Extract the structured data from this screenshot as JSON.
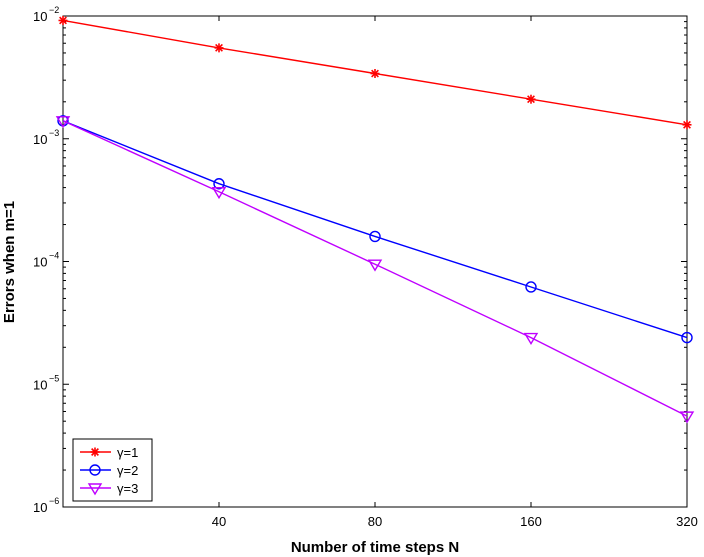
{
  "chart_data": {
    "type": "line",
    "xlabel": "Number of time steps N",
    "ylabel": "Errors when m=1",
    "x": [
      20,
      40,
      80,
      160,
      320
    ],
    "xlim": [
      20,
      320
    ],
    "x_scale": "log",
    "x_ticks": [
      40,
      80,
      160,
      320
    ],
    "x_tick_labels": [
      "40",
      "80",
      "160",
      "320"
    ],
    "y_scale": "log",
    "ylim": [
      1e-06,
      0.01
    ],
    "y_ticks": [
      {
        "base": "10",
        "exp": "−2",
        "value": 0.01
      },
      {
        "base": "10",
        "exp": "−3",
        "value": 0.001
      },
      {
        "base": "10",
        "exp": "−4",
        "value": 0.0001
      },
      {
        "base": "10",
        "exp": "−5",
        "value": 1e-05
      },
      {
        "base": "10",
        "exp": "−6",
        "value": 1e-06
      }
    ],
    "grid": false,
    "legend_position": "bottom-left",
    "series": [
      {
        "name": "γ=1",
        "color": "#ff0000",
        "marker": "star",
        "values": [
          0.0092,
          0.0055,
          0.0034,
          0.0021,
          0.0013
        ]
      },
      {
        "name": "γ=2",
        "color": "#0000ff",
        "marker": "circle",
        "values": [
          0.0014,
          0.00043,
          0.00016,
          6.2e-05,
          2.4e-05
        ]
      },
      {
        "name": "γ=3",
        "color": "#bf00ff",
        "marker": "triangle-down",
        "values": [
          0.0014,
          0.00037,
          9.5e-05,
          2.4e-05,
          5.5e-06
        ]
      }
    ]
  }
}
